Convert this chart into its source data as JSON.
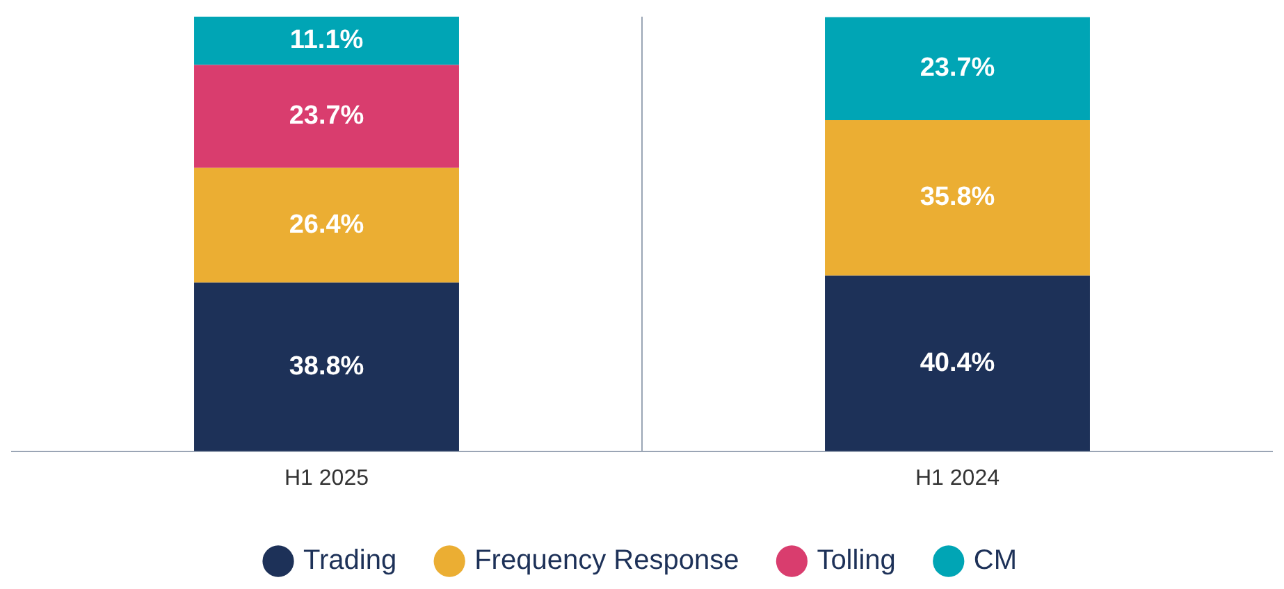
{
  "chart_data": {
    "type": "bar",
    "stacked": true,
    "categories": [
      "H1 2025",
      "H1 2024"
    ],
    "series": [
      {
        "name": "Trading",
        "color": "#1d3158",
        "values": [
          38.8,
          40.4
        ],
        "value_labels": [
          "38.8%",
          "40.4%"
        ]
      },
      {
        "name": "Frequency Response",
        "color": "#ebae33",
        "values": [
          26.4,
          35.8
        ],
        "value_labels": [
          "26.4%",
          "35.8%"
        ]
      },
      {
        "name": "Tolling",
        "color": "#d93d6e",
        "values": [
          23.7,
          null
        ],
        "value_labels": [
          "23.7%",
          null
        ]
      },
      {
        "name": "CM",
        "color": "#00a5b5",
        "values": [
          11.1,
          23.7
        ],
        "value_labels": [
          "11.1%",
          "23.7%"
        ]
      }
    ],
    "tick_labels": "x",
    "legend": "bottom",
    "grid": "x"
  }
}
